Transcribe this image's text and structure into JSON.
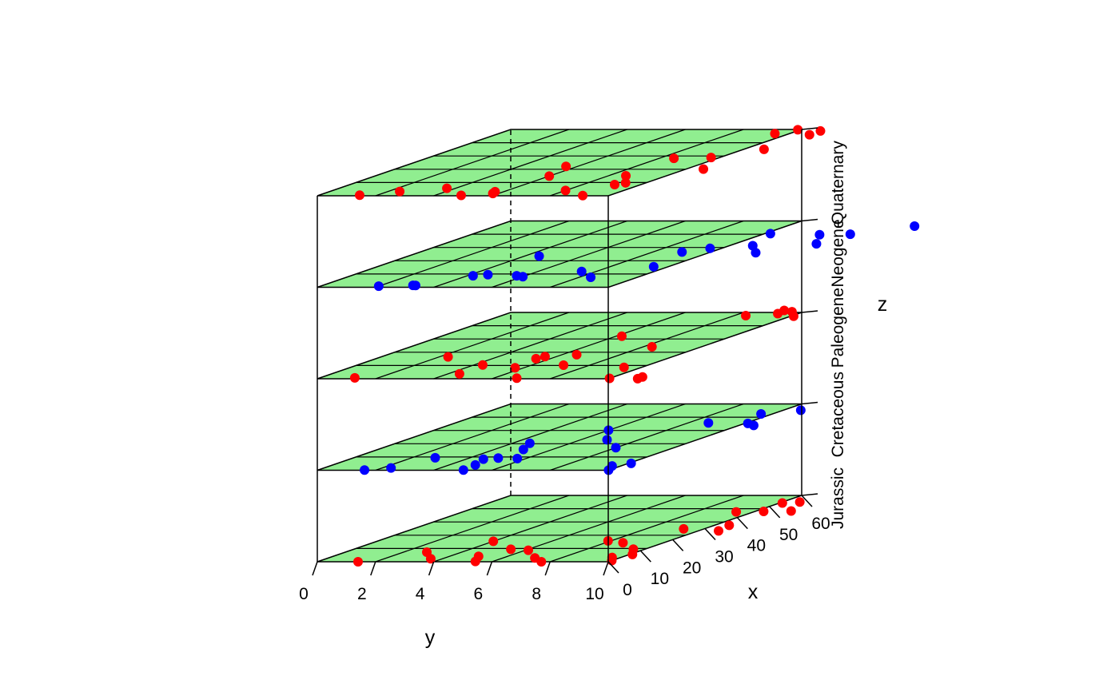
{
  "chart_data": {
    "type": "scatter",
    "subtype": "3d-stacked-layers",
    "title": "",
    "xlabel": "x",
    "ylabel": "y",
    "zlabel": "z",
    "x_ticks": [
      0,
      10,
      20,
      30,
      40,
      50,
      60
    ],
    "y_ticks": [
      0,
      2,
      4,
      6,
      8,
      10
    ],
    "xlim": [
      0,
      60
    ],
    "ylim": [
      0,
      10
    ],
    "layer_fill_color": "#90ee90",
    "grid_line_color": "#000000",
    "layers": [
      {
        "name": "Jurassic",
        "point_color": "#ff0000",
        "points": [
          {
            "x": 0.0,
            "y": 1.4
          },
          {
            "x": 8.7,
            "y": 2.8
          },
          {
            "x": 2.7,
            "y": 3.6
          },
          {
            "x": 0.3,
            "y": 5.4
          },
          {
            "x": 4.9,
            "y": 5.0
          },
          {
            "x": 18.5,
            "y": 4.0
          },
          {
            "x": 11.3,
            "y": 5.4
          },
          {
            "x": 10.4,
            "y": 6.1
          },
          {
            "x": 3.4,
            "y": 7.1
          },
          {
            "x": 0.0,
            "y": 7.7
          },
          {
            "x": 18.9,
            "y": 7.9
          },
          {
            "x": 17.2,
            "y": 8.6
          },
          {
            "x": 3.9,
            "y": 9.7
          },
          {
            "x": 11.4,
            "y": 9.6
          },
          {
            "x": 29.7,
            "y": 9.3
          },
          {
            "x": 1.1,
            "y": 10.0
          },
          {
            "x": 6.6,
            "y": 10.1
          },
          {
            "x": 27.9,
            "y": 10.7
          },
          {
            "x": 45.1,
            "y": 9.4
          },
          {
            "x": 33.0,
            "y": 10.5
          },
          {
            "x": 45.5,
            "y": 10.3
          },
          {
            "x": 53.1,
            "y": 10.1
          },
          {
            "x": 45.9,
            "y": 11.2
          },
          {
            "x": 54.0,
            "y": 10.6
          }
        ]
      },
      {
        "name": "Cretaceous",
        "point_color": "#0000ff",
        "points": [
          {
            "x": 0.2,
            "y": 1.6
          },
          {
            "x": 2.1,
            "y": 2.3
          },
          {
            "x": 0.2,
            "y": 5.0
          },
          {
            "x": 11.3,
            "y": 2.8
          },
          {
            "x": 4.8,
            "y": 4.9
          },
          {
            "x": 10.0,
            "y": 4.6
          },
          {
            "x": 11.0,
            "y": 5.0
          },
          {
            "x": 0.1,
            "y": 10.0
          },
          {
            "x": 3.9,
            "y": 9.7
          },
          {
            "x": 10.6,
            "y": 5.7
          },
          {
            "x": 18.8,
            "y": 5.0
          },
          {
            "x": 24.4,
            "y": 4.6
          },
          {
            "x": 6.2,
            "y": 10.1
          },
          {
            "x": 20.4,
            "y": 8.0
          },
          {
            "x": 27.6,
            "y": 6.9
          },
          {
            "x": 36.2,
            "y": 6.0
          },
          {
            "x": 40.6,
            "y": 10.5
          },
          {
            "x": 42.8,
            "y": 8.7
          },
          {
            "x": 42.4,
            "y": 10.1
          },
          {
            "x": 54.3,
            "y": 10.6
          },
          {
            "x": 51.0,
            "y": 9.6
          }
        ]
      },
      {
        "name": "Paleogene",
        "point_color": "#ff0000",
        "points": [
          {
            "x": 0.8,
            "y": 1.2
          },
          {
            "x": 19.8,
            "y": 2.3
          },
          {
            "x": 4.4,
            "y": 4.4
          },
          {
            "x": 12.5,
            "y": 4.3
          },
          {
            "x": 0.5,
            "y": 6.8
          },
          {
            "x": 9.9,
            "y": 5.7
          },
          {
            "x": 18.2,
            "y": 5.5
          },
          {
            "x": 20.1,
            "y": 5.6
          },
          {
            "x": 38.5,
            "y": 6.2
          },
          {
            "x": 12.3,
            "y": 7.1
          },
          {
            "x": 21.8,
            "y": 6.5
          },
          {
            "x": 0.4,
            "y": 10.0
          },
          {
            "x": 10.3,
            "y": 9.4
          },
          {
            "x": 28.9,
            "y": 8.3
          },
          {
            "x": 0.1,
            "y": 11.0
          },
          {
            "x": 1.6,
            "y": 11.0
          },
          {
            "x": 57.1,
            "y": 8.4
          },
          {
            "x": 58.9,
            "y": 9.3
          },
          {
            "x": 61.8,
            "y": 9.2
          },
          {
            "x": 60.6,
            "y": 9.6
          },
          {
            "x": 56.6,
            "y": 10.1
          }
        ]
      },
      {
        "name": "Neogene",
        "point_color": "#0000ff",
        "points": [
          {
            "x": 1.0,
            "y": 2.0
          },
          {
            "x": 1.7,
            "y": 3.1
          },
          {
            "x": 1.6,
            "y": 3.2
          },
          {
            "x": 10.4,
            "y": 4.2
          },
          {
            "x": 10.4,
            "y": 5.7
          },
          {
            "x": 9.6,
            "y": 6.0
          },
          {
            "x": 11.4,
            "y": 4.6
          },
          {
            "x": 28.2,
            "y": 4.5
          },
          {
            "x": 14.3,
            "y": 7.5
          },
          {
            "x": 9.0,
            "y": 8.4
          },
          {
            "x": 18.6,
            "y": 9.5
          },
          {
            "x": 31.9,
            "y": 9.0
          },
          {
            "x": 35.2,
            "y": 9.6
          },
          {
            "x": 37.6,
            "y": 10.8
          },
          {
            "x": 31.3,
            "y": 11.6
          },
          {
            "x": 48.5,
            "y": 10.2
          },
          {
            "x": 47.5,
            "y": 12.0
          },
          {
            "x": 39.3,
            "y": 12.8
          },
          {
            "x": 48.0,
            "y": 13.0
          },
          {
            "x": 55.3,
            "y": 14.4
          }
        ]
      },
      {
        "name": "Quaternary",
        "point_color": "#ff0000",
        "points": [
          {
            "x": 0.5,
            "y": 1.4
          },
          {
            "x": 3.9,
            "y": 2.4
          },
          {
            "x": 0.4,
            "y": 4.9
          },
          {
            "x": 2.1,
            "y": 5.8
          },
          {
            "x": 6.8,
            "y": 3.7
          },
          {
            "x": 3.7,
            "y": 5.7
          },
          {
            "x": 0.2,
            "y": 9.1
          },
          {
            "x": 4.8,
            "y": 8.0
          },
          {
            "x": 17.8,
            "y": 6.0
          },
          {
            "x": 26.6,
            "y": 5.6
          },
          {
            "x": 10.1,
            "y": 9.1
          },
          {
            "x": 11.7,
            "y": 9.3
          },
          {
            "x": 18.1,
            "y": 8.6
          },
          {
            "x": 33.9,
            "y": 8.5
          },
          {
            "x": 24.1,
            "y": 10.6
          },
          {
            "x": 34.6,
            "y": 9.7
          },
          {
            "x": 42.0,
            "y": 10.7
          },
          {
            "x": 56.2,
            "y": 9.5
          },
          {
            "x": 55.2,
            "y": 10.8
          },
          {
            "x": 59.7,
            "y": 9.9
          },
          {
            "x": 58.6,
            "y": 10.8
          }
        ]
      }
    ],
    "grid": true,
    "legend": "none"
  }
}
